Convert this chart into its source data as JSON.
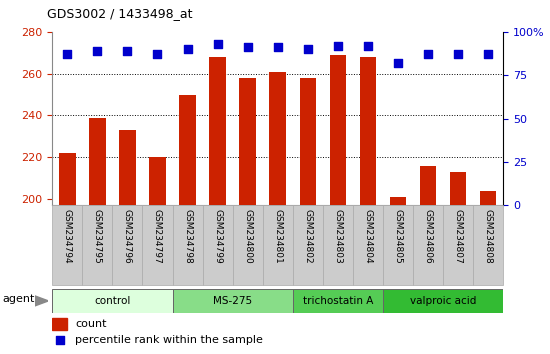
{
  "title": "GDS3002 / 1433498_at",
  "samples": [
    "GSM234794",
    "GSM234795",
    "GSM234796",
    "GSM234797",
    "GSM234798",
    "GSM234799",
    "GSM234800",
    "GSM234801",
    "GSM234802",
    "GSM234803",
    "GSM234804",
    "GSM234805",
    "GSM234806",
    "GSM234807",
    "GSM234808"
  ],
  "counts": [
    222,
    239,
    233,
    220,
    250,
    268,
    258,
    261,
    258,
    269,
    268,
    201,
    216,
    213,
    204
  ],
  "percentiles": [
    87,
    89,
    89,
    87,
    90,
    93,
    91,
    91,
    90,
    92,
    92,
    82,
    87,
    87,
    87
  ],
  "bar_color": "#cc2200",
  "dot_color": "#0000cc",
  "ylim_left": [
    197,
    280
  ],
  "yticks_left": [
    200,
    220,
    240,
    260,
    280
  ],
  "ylim_right": [
    0,
    100
  ],
  "yticks_right": [
    0,
    25,
    50,
    75,
    100
  ],
  "groups": [
    {
      "label": "control",
      "start": 0,
      "end": 4,
      "color": "#ddffdd"
    },
    {
      "label": "MS-275",
      "start": 4,
      "end": 8,
      "color": "#88dd88"
    },
    {
      "label": "trichostatin A",
      "start": 8,
      "end": 11,
      "color": "#55cc55"
    },
    {
      "label": "valproic acid",
      "start": 11,
      "end": 15,
      "color": "#33bb33"
    }
  ],
  "group_row_label": "agent",
  "legend_count_label": "count",
  "legend_percentile_label": "percentile rank within the sample",
  "bar_width": 0.55,
  "dot_size": 40,
  "sample_bg_color": "#cccccc",
  "tick_color_left": "#cc2200",
  "tick_color_right": "#0000cc"
}
